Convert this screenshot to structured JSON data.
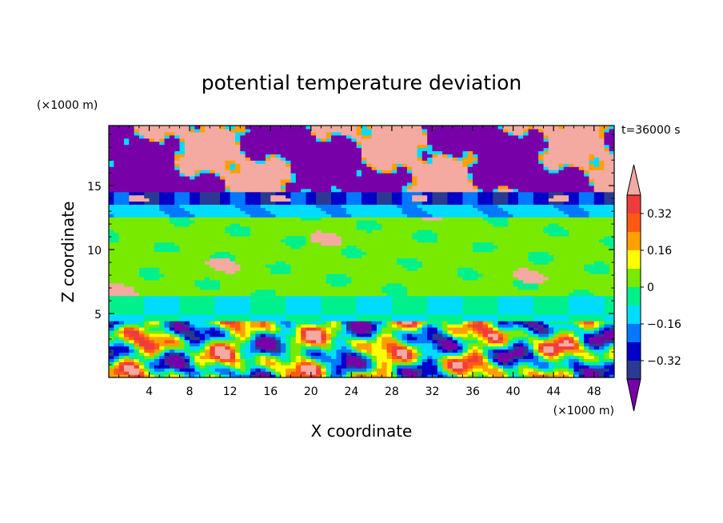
{
  "chart_data": {
    "type": "heatmap",
    "title": "potential temperature deviation",
    "time_label": "t=36000 s",
    "xlabel": "X coordinate",
    "ylabel": "Z coordinate",
    "x_unit": "(×1000 m)",
    "y_unit": "(×1000 m)",
    "xlim": [
      0,
      50
    ],
    "ylim": [
      0,
      19.7
    ],
    "x_ticks": [
      4,
      8,
      12,
      16,
      20,
      24,
      28,
      32,
      36,
      40,
      44,
      48
    ],
    "y_ticks": [
      5,
      10,
      15
    ],
    "colorbar": {
      "ticks": [
        0.32,
        0.16,
        0,
        -0.16,
        -0.32
      ],
      "tick_labels": [
        "0.32",
        "0.16",
        "0",
        "−0.16",
        "−0.32"
      ],
      "levels": [
        -0.4,
        -0.32,
        -0.24,
        -0.16,
        -0.08,
        0,
        0.08,
        0.16,
        0.24,
        0.32,
        0.4
      ],
      "colors": [
        "#7800a8",
        "#2a3a92",
        "#0000c8",
        "#0078ff",
        "#00dcff",
        "#00f08c",
        "#78ea00",
        "#ffff00",
        "#ffa000",
        "#ff5a14",
        "#f03c3c",
        "#f4aaa0"
      ],
      "extend": "both"
    },
    "bands": [
      {
        "z_range": [
          0,
          4.5
        ],
        "value": "mixed",
        "note": ""
      },
      {
        "z_range": [
          4.5,
          6.5
        ],
        "value": -0.08
      },
      {
        "z_range": [
          6.5,
          12.5
        ],
        "value": 0.04
      },
      {
        "z_range": [
          12.5,
          14.5
        ],
        "value": -0.12
      },
      {
        "z_range": [
          14.5,
          19.7
        ],
        "value": "mixed"
      }
    ]
  },
  "icons": {
    "colorbar_top": "triangle-up",
    "colorbar_bottom": "triangle-down"
  }
}
